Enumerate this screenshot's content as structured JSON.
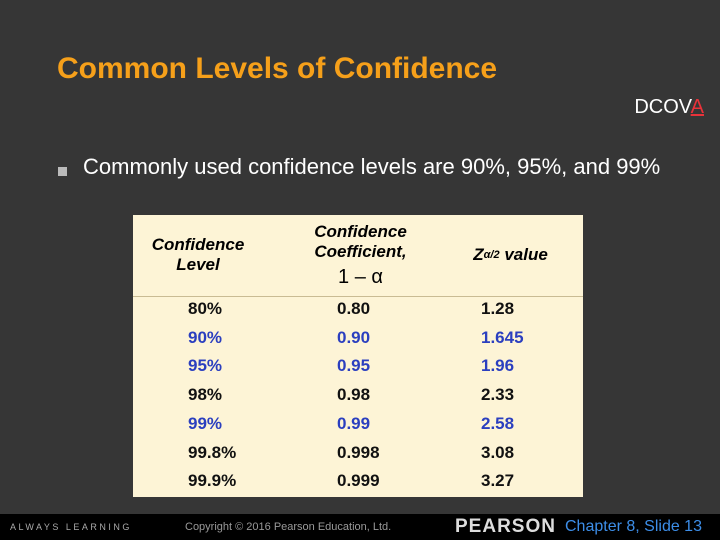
{
  "slide": {
    "title": "Common Levels of Confidence",
    "tag": {
      "main": "DCOV",
      "highlight": "A"
    },
    "bullet": "Commonly used confidence levels are 90%, 95%, and 99%",
    "table": {
      "headers": {
        "level": "Confidence Level",
        "coefficient": "Confidence Coefficient,",
        "coefficient_formula": "1 – α",
        "z": {
          "symbol": "Z",
          "subscript": "α/2",
          "suffix": "value"
        }
      },
      "rows": [
        [
          "80%",
          "0.80",
          "1.28"
        ],
        [
          "90%",
          "0.90",
          "1.645"
        ],
        [
          "95%",
          "0.95",
          "1.96"
        ],
        [
          "98%",
          "0.98",
          "2.33"
        ],
        [
          "99%",
          "0.99",
          "2.58"
        ],
        [
          "99.8%",
          "0.998",
          "3.08"
        ],
        [
          "99.9%",
          "0.999",
          "3.27"
        ]
      ]
    },
    "footer": {
      "left": "ALWAYS LEARNING",
      "copyright": "Copyright © 2016 Pearson Education, Ltd.",
      "brand": "PEARSON",
      "page": "Chapter 8, Slide 13"
    }
  }
}
